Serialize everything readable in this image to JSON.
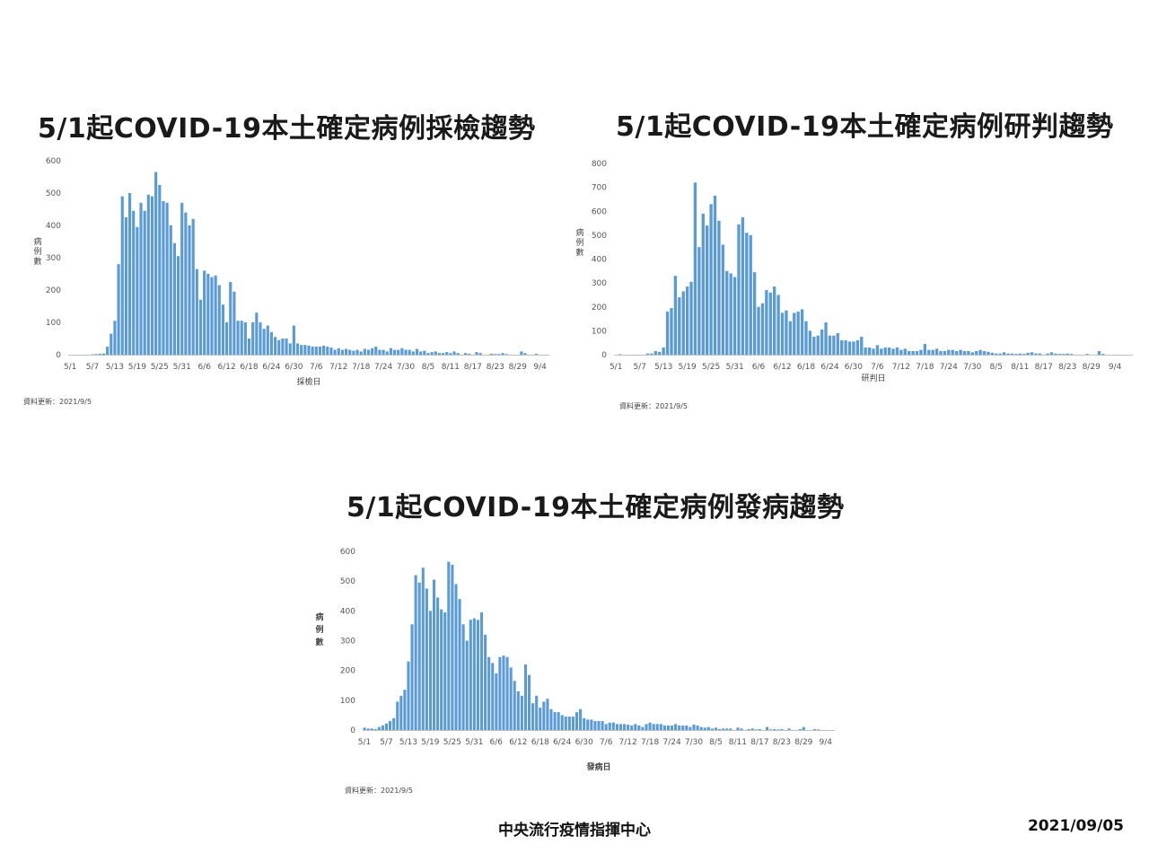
{
  "footer": {
    "agency": "中央流行疫情指揮中心",
    "date": "2021/09/05"
  },
  "chart_data": [
    {
      "type": "bar",
      "title": "5/1起COVID-19本土確定病例採檢趨勢",
      "xlabel": "採檢日",
      "ylabel": "病例數",
      "note": "資料更新：2021/9/5",
      "ylim": [
        0,
        600
      ],
      "yticks": [
        "0",
        "100",
        "200",
        "300",
        "400",
        "500",
        "600"
      ],
      "xticks": [
        "5/1",
        "5/7",
        "5/13",
        "5/19",
        "5/25",
        "5/31",
        "6/6",
        "6/12",
        "6/18",
        "6/24",
        "6/30",
        "7/6",
        "7/12",
        "7/18",
        "7/24",
        "7/30",
        "8/5",
        "8/11",
        "8/17",
        "8/23",
        "8/29",
        "9/4"
      ],
      "color": "#5b9bd5",
      "values": [
        0,
        0,
        0,
        0,
        0,
        0,
        1,
        2,
        3,
        4,
        25,
        65,
        105,
        280,
        490,
        425,
        500,
        445,
        395,
        470,
        445,
        495,
        490,
        565,
        525,
        475,
        470,
        400,
        345,
        305,
        470,
        440,
        400,
        420,
        265,
        170,
        260,
        250,
        240,
        245,
        215,
        155,
        100,
        225,
        195,
        105,
        105,
        100,
        50,
        100,
        130,
        100,
        80,
        90,
        70,
        55,
        45,
        50,
        50,
        35,
        90,
        35,
        30,
        30,
        28,
        25,
        25,
        25,
        28,
        25,
        22,
        15,
        20,
        15,
        18,
        15,
        12,
        15,
        10,
        18,
        15,
        20,
        25,
        15,
        15,
        10,
        20,
        15,
        15,
        20,
        15,
        15,
        10,
        18,
        10,
        12,
        5,
        8,
        10,
        5,
        5,
        8,
        5,
        10,
        5,
        0,
        5,
        3,
        0,
        8,
        5,
        0,
        0,
        3,
        2,
        2,
        5,
        2,
        0,
        0,
        0,
        10,
        5,
        0,
        0,
        3,
        0,
        0,
        0
      ]
    },
    {
      "type": "bar",
      "title": "5/1起COVID-19本土確定病例研判趨勢",
      "xlabel": "研判日",
      "ylabel": "病例數",
      "note": "資料更新：2021/9/5",
      "ylim": [
        0,
        800
      ],
      "yticks": [
        "0",
        "100",
        "200",
        "300",
        "400",
        "500",
        "600",
        "700",
        "800"
      ],
      "xticks": [
        "5/1",
        "5/7",
        "5/13",
        "5/19",
        "5/25",
        "5/31",
        "6/6",
        "6/12",
        "6/18",
        "6/24",
        "6/30",
        "7/6",
        "7/12",
        "7/18",
        "7/24",
        "7/30",
        "8/5",
        "8/11",
        "8/17",
        "8/23",
        "8/29",
        "9/4"
      ],
      "color": "#5b9bd5",
      "values": [
        0,
        2,
        0,
        0,
        0,
        0,
        0,
        0,
        5,
        5,
        15,
        12,
        30,
        180,
        195,
        330,
        240,
        265,
        285,
        305,
        720,
        450,
        590,
        540,
        630,
        665,
        560,
        460,
        350,
        340,
        325,
        545,
        575,
        510,
        500,
        345,
        200,
        215,
        270,
        260,
        285,
        250,
        175,
        185,
        140,
        175,
        180,
        190,
        140,
        100,
        75,
        80,
        105,
        135,
        80,
        80,
        90,
        60,
        60,
        55,
        55,
        60,
        75,
        30,
        30,
        25,
        40,
        25,
        30,
        30,
        25,
        30,
        20,
        25,
        15,
        15,
        15,
        20,
        45,
        20,
        20,
        25,
        15,
        15,
        20,
        20,
        15,
        20,
        15,
        15,
        10,
        15,
        20,
        15,
        12,
        8,
        5,
        5,
        10,
        5,
        5,
        3,
        5,
        3,
        8,
        10,
        5,
        5,
        0,
        5,
        10,
        5,
        3,
        3,
        5,
        3,
        0,
        0,
        0,
        3,
        0,
        0,
        15,
        3,
        0,
        0,
        0,
        0,
        0,
        0,
        0
      ]
    },
    {
      "type": "bar",
      "title": "5/1起COVID-19本土確定病例發病趨勢",
      "xlabel": "發病日",
      "ylabel": "病例數",
      "note": "資料更新：2021/9/5",
      "ylim": [
        0,
        600
      ],
      "yticks": [
        "0",
        "100",
        "200",
        "300",
        "400",
        "500",
        "600"
      ],
      "xticks": [
        "5/1",
        "5/7",
        "5/13",
        "5/19",
        "5/25",
        "5/31",
        "6/6",
        "6/12",
        "6/18",
        "6/24",
        "6/30",
        "7/6",
        "7/12",
        "7/18",
        "7/24",
        "7/30",
        "8/5",
        "8/11",
        "8/17",
        "8/23",
        "8/29",
        "9/4"
      ],
      "color": "#5b9bd5",
      "values": [
        8,
        5,
        5,
        3,
        10,
        15,
        22,
        30,
        40,
        95,
        115,
        135,
        230,
        355,
        520,
        495,
        545,
        475,
        400,
        505,
        445,
        405,
        395,
        565,
        555,
        490,
        440,
        355,
        300,
        370,
        375,
        370,
        395,
        320,
        245,
        225,
        190,
        245,
        250,
        245,
        210,
        165,
        130,
        115,
        220,
        185,
        90,
        115,
        75,
        95,
        105,
        70,
        60,
        60,
        50,
        45,
        45,
        45,
        60,
        70,
        40,
        35,
        35,
        30,
        30,
        30,
        20,
        25,
        25,
        20,
        20,
        20,
        18,
        15,
        20,
        15,
        10,
        20,
        25,
        20,
        20,
        20,
        15,
        15,
        15,
        20,
        15,
        15,
        15,
        10,
        18,
        15,
        10,
        8,
        10,
        5,
        8,
        3,
        5,
        5,
        5,
        0,
        8,
        5,
        0,
        3,
        5,
        2,
        3,
        0,
        10,
        2,
        3,
        2,
        3,
        0,
        5,
        0,
        0,
        3,
        10,
        0,
        0,
        3,
        2,
        0,
        0,
        0,
        0
      ]
    }
  ]
}
